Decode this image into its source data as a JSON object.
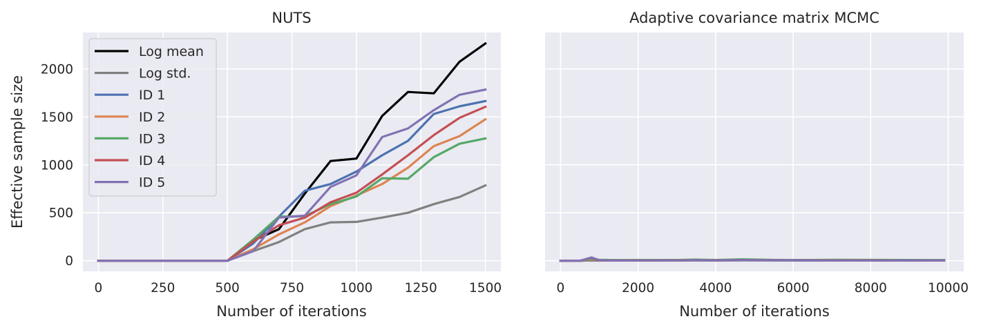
{
  "chart_data": [
    {
      "type": "line",
      "title": "NUTS",
      "xlabel": "Number of iterations",
      "ylabel": "Effective sample size",
      "xlim": [
        -60,
        1560
      ],
      "ylim": [
        -110,
        2380
      ],
      "xticks": [
        0,
        250,
        500,
        750,
        1000,
        1250,
        1500
      ],
      "yticks": [
        0,
        500,
        1000,
        1500,
        2000
      ],
      "xtick_labels": [
        "0",
        "250",
        "500",
        "750",
        "1000",
        "1250",
        "1500"
      ],
      "ytick_labels": [
        "0",
        "500",
        "1000",
        "1500",
        "2000"
      ],
      "grid": true,
      "legend": "top-left",
      "x": [
        0,
        100,
        200,
        300,
        400,
        500,
        600,
        700,
        800,
        900,
        1000,
        1100,
        1200,
        1300,
        1400,
        1500
      ],
      "series": [
        {
          "name": "Log mean",
          "color": "#000000",
          "values": [
            0,
            0,
            0,
            0,
            0,
            0,
            210,
            330,
            700,
            1040,
            1065,
            1510,
            1760,
            1745,
            2075,
            2265
          ]
        },
        {
          "name": "Log std.",
          "color": "#808080",
          "values": [
            0,
            0,
            0,
            0,
            0,
            0,
            100,
            195,
            330,
            400,
            405,
            450,
            500,
            590,
            665,
            785
          ]
        },
        {
          "name": "ID 1",
          "color": "#4c72b0",
          "values": [
            0,
            0,
            0,
            0,
            0,
            0,
            180,
            460,
            730,
            800,
            930,
            1100,
            1250,
            1530,
            1610,
            1665
          ]
        },
        {
          "name": "ID 2",
          "color": "#dd8452",
          "values": [
            0,
            0,
            0,
            0,
            0,
            0,
            120,
            275,
            400,
            570,
            680,
            800,
            970,
            1195,
            1300,
            1475
          ]
        },
        {
          "name": "ID 3",
          "color": "#55a868",
          "values": [
            0,
            0,
            0,
            0,
            0,
            0,
            220,
            460,
            465,
            590,
            670,
            860,
            855,
            1080,
            1220,
            1275
          ]
        },
        {
          "name": "ID 4",
          "color": "#c44e52",
          "values": [
            0,
            0,
            0,
            0,
            0,
            0,
            200,
            370,
            450,
            610,
            710,
            900,
            1100,
            1310,
            1490,
            1605
          ]
        },
        {
          "name": "ID 5",
          "color": "#8172b3",
          "values": [
            0,
            0,
            0,
            0,
            0,
            0,
            100,
            450,
            470,
            770,
            890,
            1290,
            1380,
            1570,
            1730,
            1785
          ]
        }
      ]
    },
    {
      "type": "line",
      "title": "Adaptive covariance matrix MCMC",
      "xlabel": "Number of iterations",
      "ylabel": "",
      "xlim": [
        -400,
        10400
      ],
      "ylim": [
        -110,
        2380
      ],
      "xticks": [
        0,
        2000,
        4000,
        6000,
        8000,
        10000
      ],
      "yticks": [
        0,
        500,
        1000,
        1500,
        2000
      ],
      "xtick_labels": [
        "0",
        "2000",
        "4000",
        "6000",
        "8000",
        "10000"
      ],
      "grid": true,
      "x": [
        0,
        500,
        800,
        1000,
        1500,
        2000,
        3000,
        3500,
        4000,
        4700,
        5500,
        6500,
        7000,
        8000,
        9000,
        9900
      ],
      "series": [
        {
          "name": "Log mean",
          "color": "#000000",
          "values": [
            0,
            0,
            5,
            3,
            2,
            3,
            4,
            5,
            4,
            6,
            5,
            4,
            4,
            4,
            3,
            3
          ]
        },
        {
          "name": "Log std.",
          "color": "#808080",
          "values": [
            0,
            0,
            4,
            2,
            2,
            3,
            3,
            4,
            3,
            4,
            4,
            3,
            3,
            3,
            3,
            3
          ]
        },
        {
          "name": "ID 1",
          "color": "#4c72b0",
          "values": [
            0,
            0,
            25,
            8,
            5,
            6,
            6,
            8,
            6,
            9,
            7,
            6,
            6,
            6,
            5,
            5
          ]
        },
        {
          "name": "ID 2",
          "color": "#dd8452",
          "values": [
            0,
            0,
            15,
            10,
            6,
            7,
            7,
            9,
            7,
            10,
            8,
            7,
            7,
            7,
            6,
            6
          ]
        },
        {
          "name": "ID 3",
          "color": "#55a868",
          "values": [
            0,
            0,
            20,
            10,
            6,
            7,
            8,
            12,
            8,
            15,
            9,
            8,
            10,
            9,
            8,
            7
          ]
        },
        {
          "name": "ID 4",
          "color": "#c44e52",
          "values": [
            0,
            0,
            30,
            2,
            3,
            4,
            5,
            6,
            5,
            7,
            6,
            5,
            5,
            5,
            4,
            4
          ]
        },
        {
          "name": "ID 5",
          "color": "#8172b3",
          "values": [
            0,
            0,
            35,
            5,
            3,
            4,
            4,
            5,
            4,
            6,
            5,
            4,
            4,
            4,
            4,
            4
          ]
        }
      ]
    }
  ]
}
